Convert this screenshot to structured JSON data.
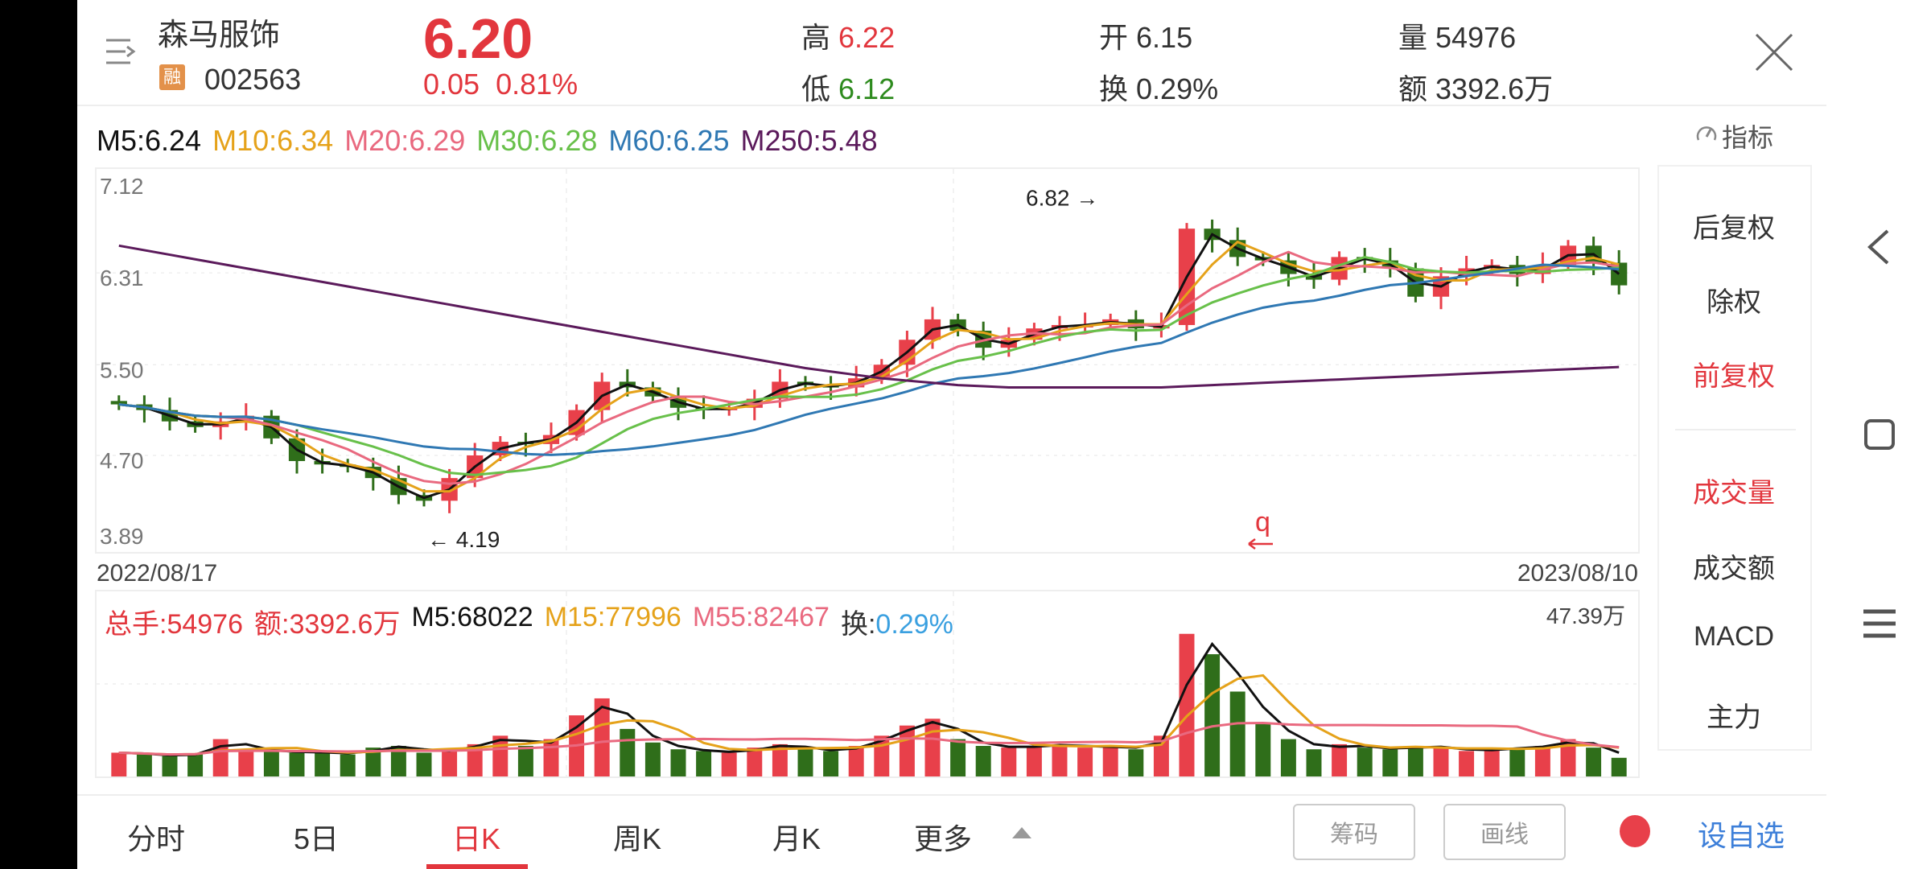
{
  "header": {
    "name": "森马服饰",
    "badge": "融",
    "code": "002563",
    "price": "6.20",
    "change": "0.05",
    "change_pct": "0.81%",
    "high_label": "高",
    "high": "6.22",
    "low_label": "低",
    "low": "6.12",
    "open_label": "开",
    "open": "6.15",
    "turnover_label": "换",
    "turnover": "0.29%",
    "volume_label": "量",
    "volume": "54976",
    "amount_label": "额",
    "amount": "3392.6万"
  },
  "ma_legend": [
    {
      "label": "M5:6.24",
      "color": "#111111"
    },
    {
      "label": "M10:6.34",
      "color": "#e5a21a"
    },
    {
      "label": "M20:6.29",
      "color": "#e9697f"
    },
    {
      "label": "M30:6.28",
      "color": "#68c04a"
    },
    {
      "label": "M60:6.25",
      "color": "#2f78b3"
    },
    {
      "label": "M250:5.48",
      "color": "#5b1a5b"
    }
  ],
  "indicator_label": "指标",
  "right_panel": {
    "items": [
      "后复权",
      "除权",
      "前复权",
      "成交量",
      "成交额",
      "MACD",
      "主力"
    ],
    "active": [
      "前复权",
      "成交量"
    ]
  },
  "volume_header": {
    "total": "总手:54976",
    "amount": "额:3392.6万",
    "m5": "M5:68022",
    "m15": "M15:77996",
    "m55": "M55:82467",
    "turn_label": "换:",
    "turn": "0.29%",
    "max_label": "47.39万"
  },
  "tabs": [
    "分时",
    "5日",
    "日K",
    "周K",
    "月K",
    "更多"
  ],
  "active_tab": "日K",
  "buttons": {
    "chips": "筹码",
    "draw": "画线",
    "add_watch": "设自选"
  },
  "colors": {
    "up": "#e8404a",
    "down": "#2f6e1a",
    "accent": "#e2363d",
    "blue": "#3d7fd9"
  },
  "chart_data": {
    "type": "candlestick",
    "start_date": "2022/08/17",
    "end_date": "2023/08/10",
    "y_ticks": [
      "7.12",
      "6.31",
      "5.50",
      "4.70",
      "3.89"
    ],
    "ylim": [
      3.89,
      7.12
    ],
    "annotations": {
      "high": "6.82",
      "low": "4.19",
      "marker": "q"
    },
    "close": [
      5.15,
      5.1,
      5.0,
      4.95,
      5.0,
      5.05,
      4.85,
      4.65,
      4.62,
      4.6,
      4.5,
      4.35,
      4.3,
      4.5,
      4.7,
      4.82,
      4.8,
      4.88,
      5.1,
      5.35,
      5.3,
      5.22,
      5.12,
      5.1,
      5.12,
      5.2,
      5.35,
      5.32,
      5.3,
      5.38,
      5.5,
      5.72,
      5.9,
      5.8,
      5.65,
      5.72,
      5.82,
      5.85,
      5.85,
      5.9,
      5.82,
      5.85,
      6.7,
      6.6,
      6.45,
      6.42,
      6.3,
      6.25,
      6.45,
      6.42,
      6.35,
      6.1,
      6.28,
      6.35,
      6.38,
      6.3,
      6.38,
      6.55,
      6.4,
      6.2
    ],
    "ma250": [
      6.55,
      6.51,
      6.47,
      6.43,
      6.39,
      6.35,
      6.31,
      6.27,
      6.23,
      6.19,
      6.15,
      6.11,
      6.07,
      6.03,
      5.99,
      5.95,
      5.91,
      5.87,
      5.83,
      5.79,
      5.75,
      5.71,
      5.67,
      5.63,
      5.59,
      5.55,
      5.51,
      5.47,
      5.44,
      5.41,
      5.38,
      5.36,
      5.34,
      5.32,
      5.31,
      5.3,
      5.3,
      5.3,
      5.3,
      5.3,
      5.3,
      5.3,
      5.31,
      5.32,
      5.33,
      5.34,
      5.35,
      5.36,
      5.37,
      5.38,
      5.39,
      5.4,
      5.41,
      5.42,
      5.43,
      5.44,
      5.45,
      5.46,
      5.47,
      5.48
    ],
    "volume": [
      70000,
      65000,
      60000,
      68000,
      110000,
      80000,
      75000,
      70000,
      72000,
      65000,
      85000,
      90000,
      70000,
      80000,
      95000,
      120000,
      90000,
      110000,
      180000,
      230000,
      140000,
      100000,
      80000,
      75000,
      70000,
      85000,
      95000,
      80000,
      75000,
      90000,
      120000,
      150000,
      170000,
      110000,
      90000,
      85000,
      90000,
      95000,
      85000,
      90000,
      80000,
      120000,
      420000,
      360000,
      250000,
      160000,
      110000,
      80000,
      95000,
      85000,
      80000,
      90000,
      85000,
      75000,
      80000,
      85000,
      90000,
      110000,
      85000,
      54976
    ],
    "volume_max": 473900
  }
}
